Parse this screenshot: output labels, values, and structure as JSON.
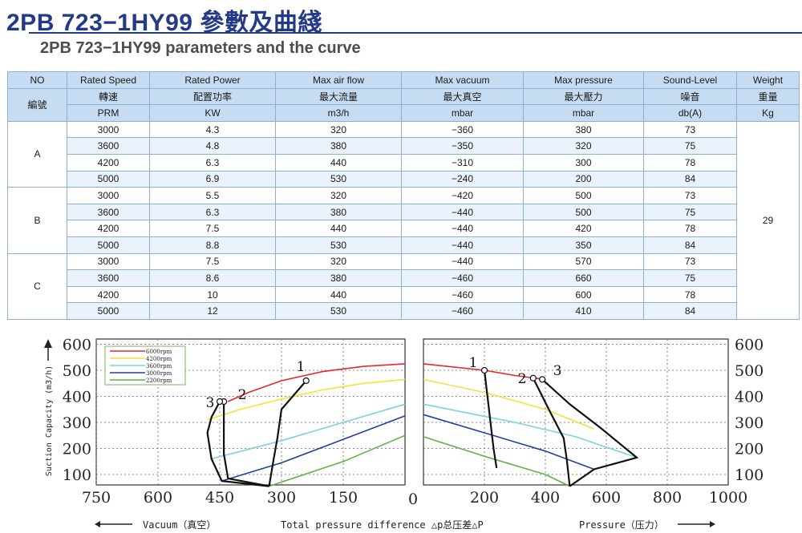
{
  "title": "2PB 723−1HY99 參數及曲綫",
  "subtitle": "2PB 723−1HY99 parameters and the curve",
  "table": {
    "header_en": [
      "NO",
      "Rated Speed",
      "Rated Power",
      "Max air flow",
      "Max vacuum",
      "Max pressure",
      "Sound-Level",
      "Weight"
    ],
    "header_zh": [
      "編號",
      "轉速",
      "配置功率",
      "最大流量",
      "最大真空",
      "最大壓力",
      "噪音",
      "重量"
    ],
    "header_unit": [
      "PRM",
      "KW",
      "m3/h",
      "mbar",
      "mbar",
      "db(A)",
      "Kg"
    ],
    "groups": [
      {
        "name": "A",
        "rows": [
          [
            "3000",
            "4.3",
            "320",
            "−360",
            "380",
            "73"
          ],
          [
            "3600",
            "4.8",
            "380",
            "−350",
            "320",
            "75"
          ],
          [
            "4200",
            "6.3",
            "440",
            "−310",
            "300",
            "78"
          ],
          [
            "5000",
            "6.9",
            "530",
            "−240",
            "200",
            "84"
          ]
        ]
      },
      {
        "name": "B",
        "rows": [
          [
            "3000",
            "5.5",
            "320",
            "−420",
            "500",
            "73"
          ],
          [
            "3600",
            "6.3",
            "380",
            "−440",
            "500",
            "75"
          ],
          [
            "4200",
            "7.5",
            "440",
            "−440",
            "420",
            "78"
          ],
          [
            "5000",
            "8.8",
            "530",
            "−440",
            "350",
            "84"
          ]
        ]
      },
      {
        "name": "C",
        "rows": [
          [
            "3000",
            "7.5",
            "320",
            "−440",
            "570",
            "73"
          ],
          [
            "3600",
            "8.6",
            "380",
            "−460",
            "660",
            "75"
          ],
          [
            "4200",
            "10",
            "440",
            "−460",
            "600",
            "78"
          ],
          [
            "5000",
            "12",
            "530",
            "−460",
            "410",
            "84"
          ]
        ]
      }
    ],
    "weight": "29"
  },
  "chart_data": {
    "type": "line",
    "ylabel": "Suction Capacity (m3/h)",
    "y_ticks": [
      "100",
      "200",
      "300",
      "400",
      "500",
      "600"
    ],
    "ylim": [
      60,
      620
    ],
    "vacuum_ticks": [
      "750",
      "600",
      "450",
      "300",
      "150"
    ],
    "pressure_ticks": [
      "200",
      "400",
      "600",
      "800",
      "1000"
    ],
    "zero_label": "0",
    "xlabel_left": "Vacuum（真空）",
    "xlabel_center": "Total pressure difference △p总压差△P",
    "xlabel_right": "Pressure（压力）",
    "legend": [
      {
        "name": "6000rpm",
        "color": "#e8262b"
      },
      {
        "name": "4200rpm",
        "color": "#f2e43c"
      },
      {
        "name": "3600rpm",
        "color": "#7fd0dd"
      },
      {
        "name": "3000rpm",
        "color": "#21409a"
      },
      {
        "name": "2200rpm",
        "color": "#5cb345"
      }
    ],
    "point_labels": [
      "1",
      "2",
      "3"
    ],
    "vacuum_series": [
      {
        "name": "6000rpm",
        "color": "#e8262b",
        "points": [
          [
            430,
            380
          ],
          [
            380,
            415
          ],
          [
            300,
            460
          ],
          [
            200,
            495
          ],
          [
            100,
            515
          ],
          [
            0,
            525
          ]
        ]
      },
      {
        "name": "4200rpm",
        "color": "#f2e43c",
        "points": [
          [
            480,
            310
          ],
          [
            400,
            350
          ],
          [
            300,
            390
          ],
          [
            200,
            425
          ],
          [
            100,
            450
          ],
          [
            0,
            465
          ]
        ]
      },
      {
        "name": "3600rpm",
        "color": "#7fd0dd",
        "points": [
          [
            470,
            160
          ],
          [
            300,
            230
          ],
          [
            150,
            300
          ],
          [
            0,
            370
          ]
        ]
      },
      {
        "name": "3000rpm",
        "color": "#21409a",
        "points": [
          [
            445,
            75
          ],
          [
            300,
            145
          ],
          [
            150,
            235
          ],
          [
            0,
            325
          ]
        ]
      },
      {
        "name": "2200rpm",
        "color": "#5cb345",
        "points": [
          [
            330,
            55
          ],
          [
            150,
            150
          ],
          [
            0,
            250
          ]
        ]
      }
    ],
    "pressure_series": [
      {
        "name": "6000rpm",
        "color": "#e8262b",
        "points": [
          [
            0,
            525
          ],
          [
            200,
            500
          ],
          [
            300,
            480
          ],
          [
            400,
            465
          ]
        ]
      },
      {
        "name": "4200rpm",
        "color": "#f2e43c",
        "points": [
          [
            0,
            465
          ],
          [
            200,
            415
          ],
          [
            400,
            350
          ],
          [
            560,
            275
          ]
        ]
      },
      {
        "name": "3600rpm",
        "color": "#7fd0dd",
        "points": [
          [
            0,
            370
          ],
          [
            300,
            300
          ],
          [
            500,
            245
          ],
          [
            700,
            165
          ]
        ]
      },
      {
        "name": "3000rpm",
        "color": "#21409a",
        "points": [
          [
            0,
            330
          ],
          [
            200,
            260
          ],
          [
            400,
            190
          ],
          [
            560,
            120
          ]
        ]
      },
      {
        "name": "2200rpm",
        "color": "#5cb345",
        "points": [
          [
            0,
            245
          ],
          [
            200,
            170
          ],
          [
            400,
            100
          ],
          [
            480,
            55
          ]
        ]
      }
    ],
    "vacuum_limits": [
      {
        "label": "1",
        "points": [
          [
            240,
            460
          ],
          [
            300,
            350
          ],
          [
            310,
            240
          ],
          [
            320,
            150
          ],
          [
            330,
            55
          ]
        ]
      },
      {
        "label": "2",
        "points": [
          [
            440,
            380
          ],
          [
            440,
            300
          ],
          [
            440,
            180
          ],
          [
            430,
            85
          ],
          [
            330,
            55
          ]
        ]
      },
      {
        "label": "3",
        "points": [
          [
            450,
            380
          ],
          [
            470,
            320
          ],
          [
            480,
            260
          ],
          [
            470,
            160
          ],
          [
            445,
            75
          ],
          [
            330,
            55
          ]
        ]
      }
    ],
    "pressure_limits": [
      {
        "label": "1",
        "points": [
          [
            200,
            500
          ],
          [
            210,
            400
          ],
          [
            220,
            300
          ],
          [
            230,
            200
          ],
          [
            240,
            125
          ]
        ]
      },
      {
        "label": "2",
        "points": [
          [
            360,
            470
          ],
          [
            420,
            330
          ],
          [
            460,
            240
          ],
          [
            470,
            160
          ],
          [
            480,
            55
          ]
        ]
      },
      {
        "label": "3",
        "points": [
          [
            390,
            465
          ],
          [
            480,
            370
          ],
          [
            580,
            280
          ],
          [
            700,
            165
          ],
          [
            560,
            120
          ],
          [
            480,
            55
          ]
        ]
      }
    ]
  }
}
